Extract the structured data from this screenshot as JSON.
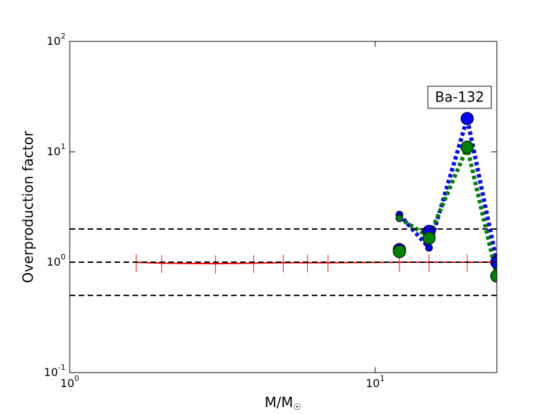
{
  "chart_data": {
    "type": "line",
    "annotation": "Ba-132",
    "xlabel": "M/M_☉",
    "ylabel": "Overproduction factor",
    "xscale": "log",
    "yscale": "log",
    "xlim": [
      1,
      25
    ],
    "ylim": [
      0.1,
      100
    ],
    "xticks": [
      {
        "value": 1,
        "label": "10^0"
      },
      {
        "value": 10,
        "label": "10^1"
      }
    ],
    "yticks": [
      {
        "value": 0.1,
        "label": "10^-1"
      },
      {
        "value": 1,
        "label": "10^0"
      },
      {
        "value": 10,
        "label": "10^1"
      },
      {
        "value": 100,
        "label": "10^2"
      }
    ],
    "hlines": {
      "values": [
        2,
        1,
        0.5
      ],
      "color": "black",
      "style": "dashed"
    },
    "x": [
      1.65,
      2,
      3,
      4,
      5,
      6,
      7,
      12,
      15,
      20,
      25
    ],
    "series": [
      {
        "color": "red",
        "style": "solid",
        "marker": "none",
        "values": [
          1,
          0.98,
          0.97,
          0.98,
          0.99,
          0.99,
          0.99,
          1,
          1,
          1,
          1
        ],
        "errors": [
          0.18,
          0.18,
          0.18,
          0.18,
          0.18,
          0.18,
          0.18,
          0.18,
          0.18,
          0.18,
          0.18
        ]
      },
      {
        "color": "blue",
        "style": "dotted",
        "marker": "small",
        "values": [
          null,
          null,
          null,
          null,
          null,
          null,
          null,
          2.7,
          1.35,
          20,
          1.0
        ]
      },
      {
        "color": "green",
        "style": "dotted",
        "marker": "small",
        "values": [
          null,
          null,
          null,
          null,
          null,
          null,
          null,
          2.5,
          1.7,
          11,
          0.75
        ]
      },
      {
        "color": "blue",
        "style": "none",
        "marker": "large",
        "values": [
          null,
          null,
          null,
          null,
          null,
          null,
          null,
          1.3,
          1.9,
          20,
          1.0
        ]
      },
      {
        "color": "green",
        "style": "none",
        "marker": "large",
        "values": [
          null,
          null,
          null,
          null,
          null,
          null,
          null,
          1.25,
          1.65,
          11,
          0.75
        ]
      }
    ]
  }
}
